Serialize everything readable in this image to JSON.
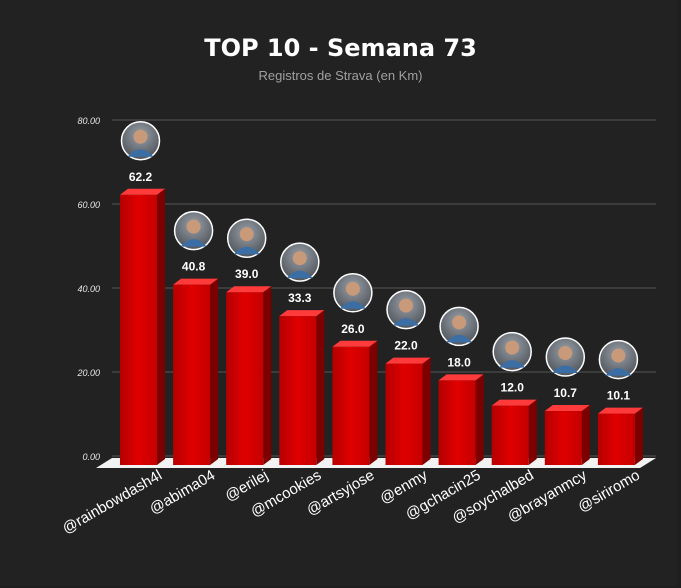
{
  "chart_data": {
    "type": "bar",
    "title": "TOP 10 - Semana 73",
    "subtitle": "Registros de Strava (en Km)",
    "categories": [
      "@rainbowdash4l",
      "@abima04",
      "@erilej",
      "@mcookies",
      "@artsyjose",
      "@enmy",
      "@gchacin25",
      "@soychalbed",
      "@brayanmcy",
      "@siriromo"
    ],
    "values": [
      62.2,
      40.8,
      39.0,
      33.3,
      26.0,
      22.0,
      18.0,
      12.0,
      10.7,
      10.1
    ],
    "value_labels": [
      "62.2",
      "40.8",
      "39.0",
      "33.3",
      "26.0",
      "22.0",
      "18.0",
      "12.0",
      "10.7",
      "10.1"
    ],
    "y_ticks": [
      "0.00",
      "20.00",
      "40.00",
      "60.00",
      "80.00"
    ],
    "ylim": [
      0,
      80
    ],
    "grid": true,
    "bar_color": "#cc0000",
    "avatar_icons": "user-avatar-photo"
  }
}
